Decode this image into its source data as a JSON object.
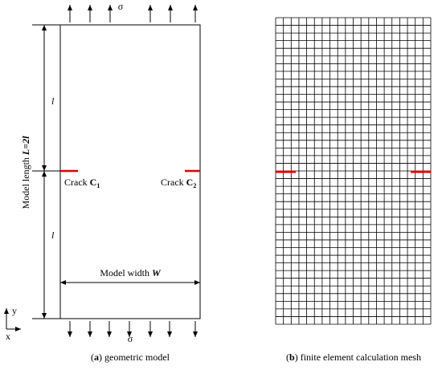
{
  "left_panel": {
    "stress_top": "σ",
    "stress_bottom": "σ",
    "half_length_top": "l",
    "half_length_bottom": "l",
    "model_length": {
      "text": "Model length",
      "symbol": "L=2l"
    },
    "crack_1": {
      "text": "Crack",
      "symbol": "C",
      "subscript": "1"
    },
    "crack_2": {
      "text": "Crack",
      "symbol": "C",
      "subscript": "2"
    },
    "model_width": {
      "text": "Model width",
      "symbol": "W"
    },
    "axis_y": "y",
    "axis_x": "x",
    "caption": {
      "prefix": "(",
      "letter": "a",
      "suffix": ") geometric model"
    }
  },
  "right_panel": {
    "caption": {
      "prefix": "(",
      "letter": "b",
      "suffix": ") finite element calculation mesh"
    }
  }
}
